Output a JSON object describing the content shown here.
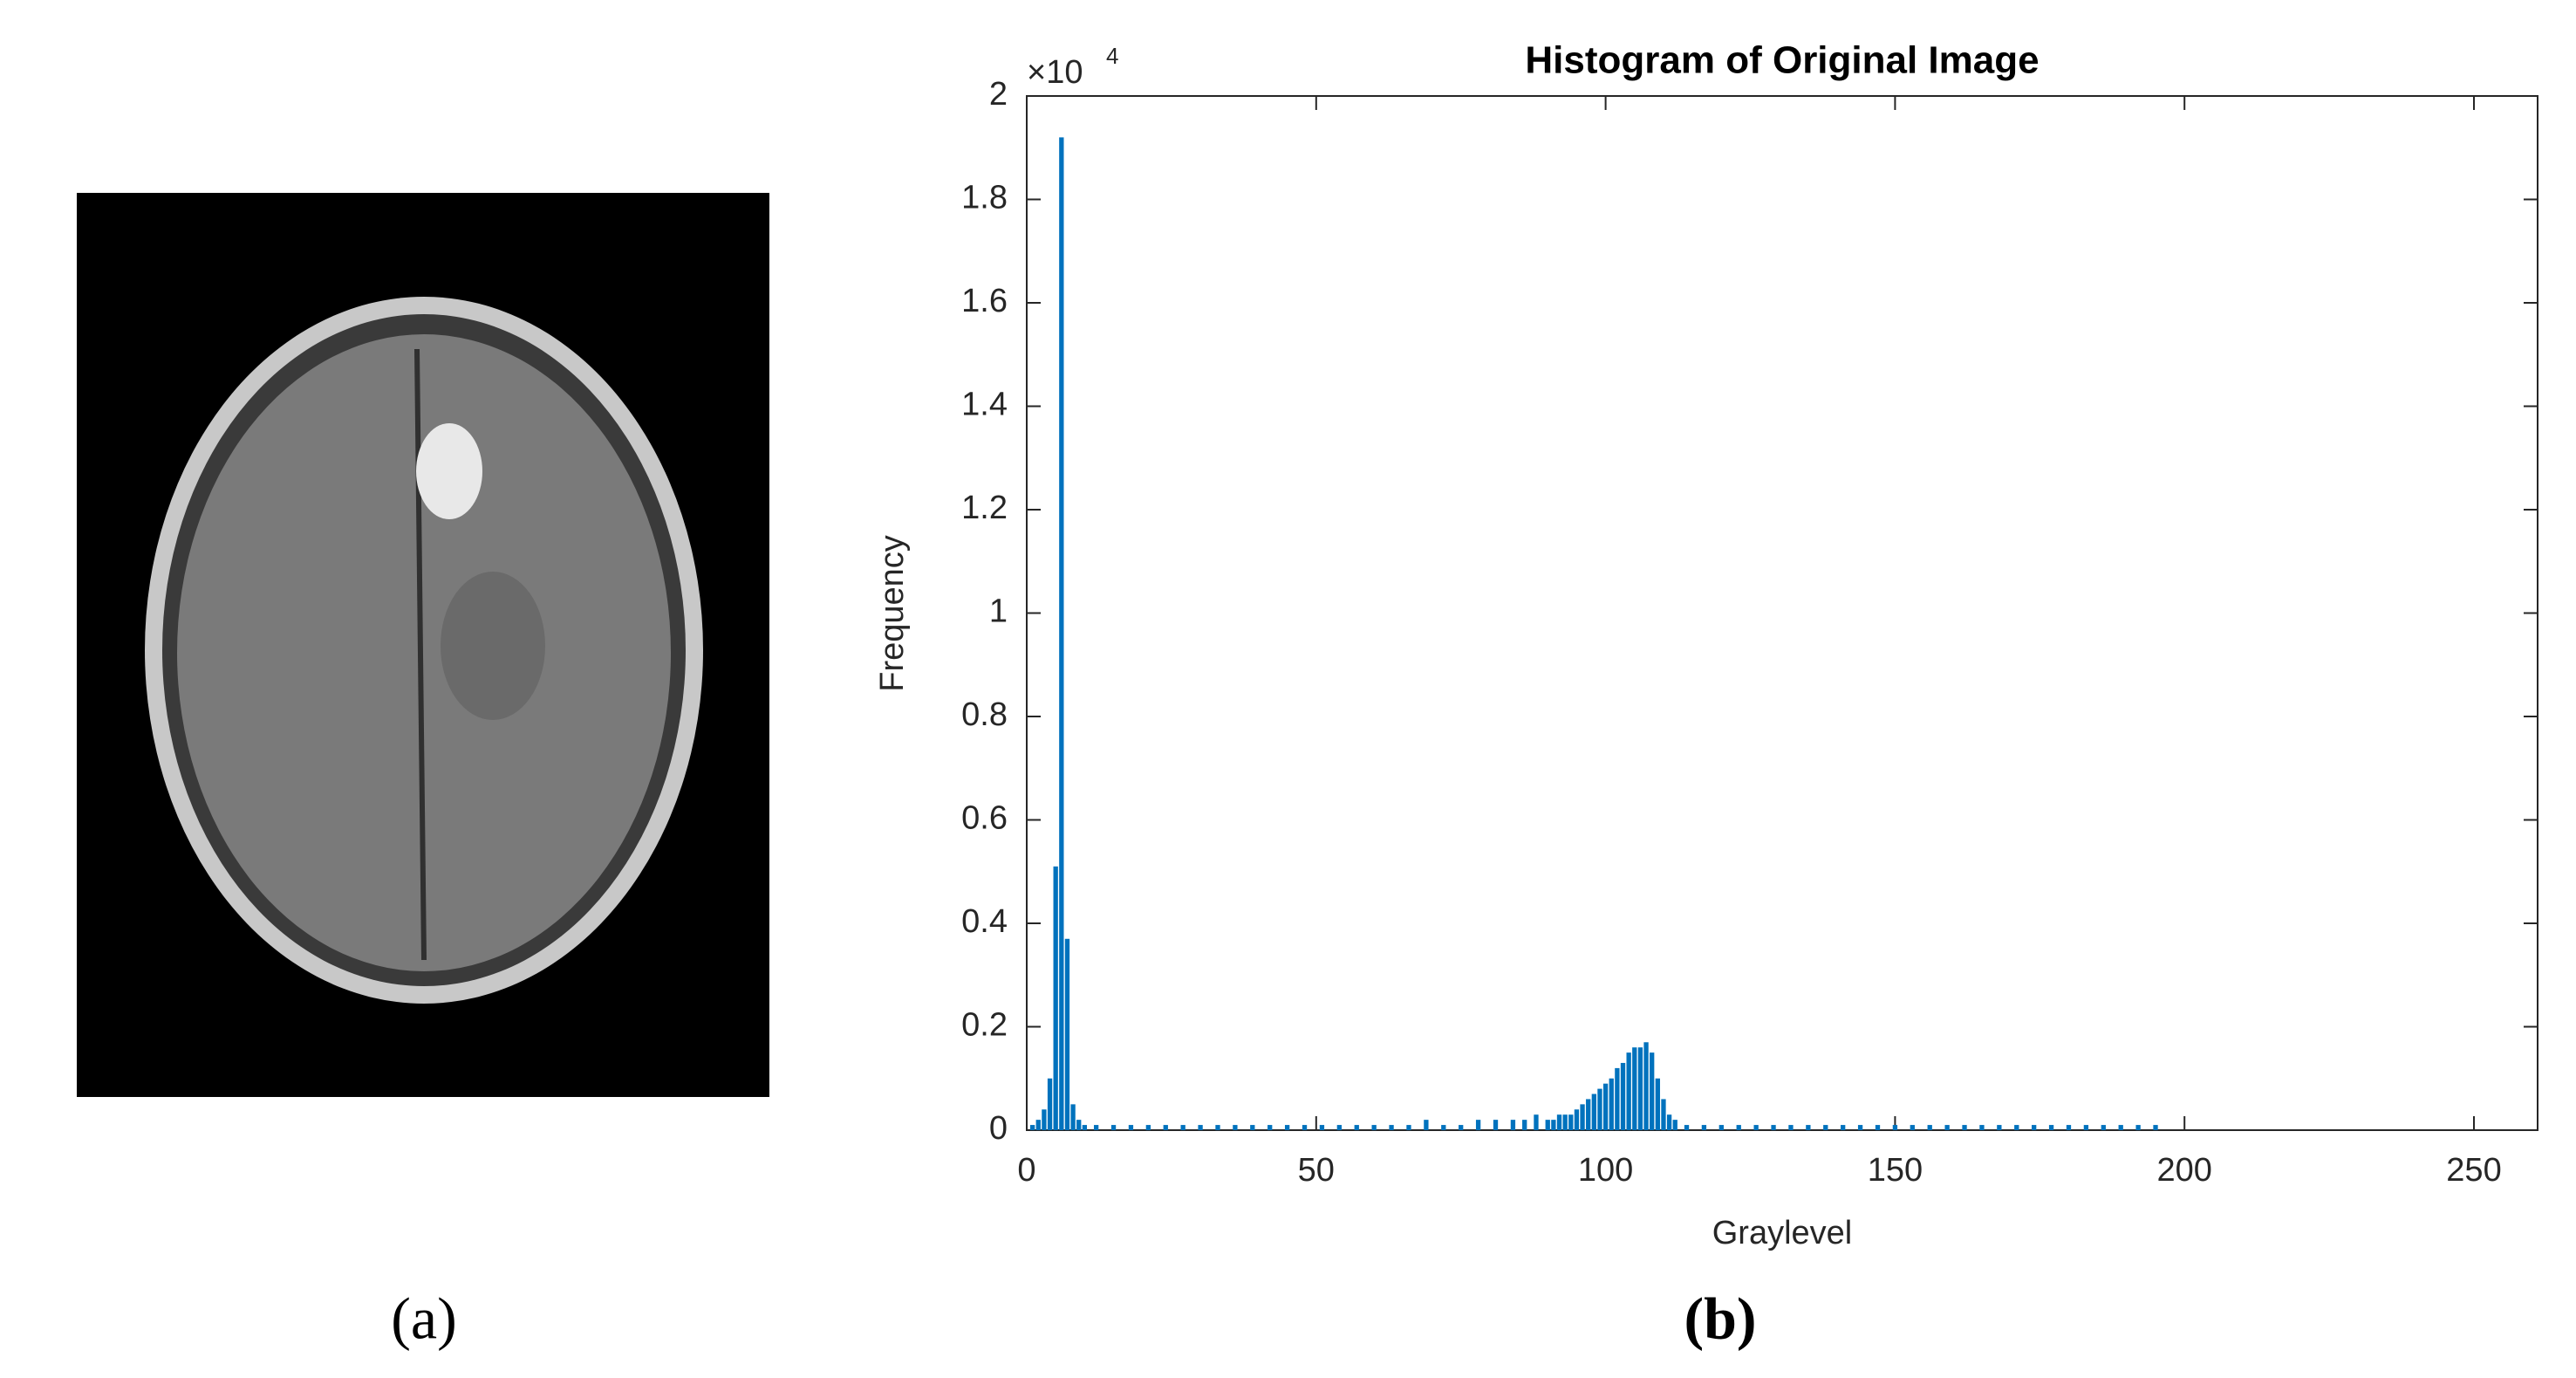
{
  "chart_data": {
    "type": "bar",
    "title": "Histogram of Original Image",
    "x_label": "Graylevel",
    "y_label": "Frequency",
    "y_scale_base": "×10",
    "y_scale_exponent": "4",
    "panel_labels": [
      "(a)",
      "(b)"
    ],
    "color": "#0072bd",
    "x": [
      1,
      2,
      3,
      4,
      5,
      6,
      7,
      8,
      9,
      10,
      12,
      15,
      18,
      21,
      24,
      27,
      30,
      33,
      36,
      39,
      42,
      45,
      48,
      51,
      54,
      57,
      60,
      63,
      66,
      69,
      72,
      75,
      78,
      81,
      84,
      86,
      88,
      90,
      91,
      92,
      93,
      94,
      95,
      96,
      97,
      98,
      99,
      100,
      101,
      102,
      103,
      104,
      105,
      106,
      107,
      108,
      109,
      110,
      111,
      112,
      114,
      117,
      120,
      123,
      126,
      129,
      132,
      135,
      138,
      141,
      144,
      147,
      150,
      153,
      156,
      159,
      162,
      165,
      168,
      171,
      174,
      177,
      180,
      183,
      186,
      189,
      192,
      195
    ],
    "values": [
      0.01,
      0.02,
      0.04,
      0.1,
      0.51,
      1.92,
      0.37,
      0.05,
      0.02,
      0.01,
      0.01,
      0.01,
      0.01,
      0.01,
      0.01,
      0.01,
      0.01,
      0.01,
      0.01,
      0.01,
      0.01,
      0.01,
      0.01,
      0.01,
      0.01,
      0.01,
      0.01,
      0.01,
      0.01,
      0.02,
      0.01,
      0.01,
      0.02,
      0.02,
      0.02,
      0.02,
      0.03,
      0.02,
      0.02,
      0.03,
      0.03,
      0.03,
      0.04,
      0.05,
      0.06,
      0.07,
      0.08,
      0.09,
      0.1,
      0.12,
      0.13,
      0.15,
      0.16,
      0.16,
      0.17,
      0.15,
      0.1,
      0.06,
      0.03,
      0.02,
      0.01,
      0.01,
      0.01,
      0.01,
      0.01,
      0.01,
      0.01,
      0.01,
      0.01,
      0.01,
      0.01,
      0.01,
      0.01,
      0.01,
      0.01,
      0.01,
      0.01,
      0.01,
      0.01,
      0.01,
      0.01,
      0.01,
      0.01,
      0.01,
      0.01,
      0.01,
      0.01,
      0.01
    ],
    "xlim": [
      0,
      261
    ],
    "xticks": [
      0,
      50,
      100,
      150,
      200,
      250
    ],
    "ylim": [
      0,
      2
    ],
    "yticks": [
      0,
      0.2,
      0.4,
      0.6,
      0.8,
      1,
      1.2,
      1.4,
      1.6,
      1.8,
      2
    ]
  }
}
